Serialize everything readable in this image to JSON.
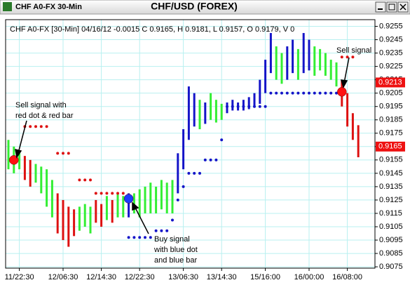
{
  "window_title": "CHF A0-FX 30-Min",
  "chart_data": {
    "type": "hlc",
    "title": "CHF/USD (FOREX)",
    "header": "CHF A0-FX [30-Min] 04/16/12 -0.0015 C 0.9165, H 0.9181, L 0.9157, O 0.9179, V 0",
    "categories": [
      null,
      null,
      "11/22:30",
      null,
      null,
      null,
      null,
      null,
      null,
      null,
      "12/06:30",
      null,
      null,
      null,
      null,
      null,
      null,
      "12/14:30",
      null,
      null,
      null,
      null,
      null,
      null,
      "12/22:30",
      null,
      null,
      null,
      null,
      null,
      null,
      null,
      "13/06:30",
      null,
      null,
      null,
      null,
      null,
      null,
      "13/14:30",
      null,
      null,
      null,
      null,
      null,
      null,
      null,
      "15/16:00",
      null,
      null,
      null,
      null,
      null,
      null,
      null,
      "16/00:00",
      null,
      null,
      null,
      null,
      null,
      null,
      "16/08:00",
      null,
      null
    ],
    "bars": {
      "high": [
        0.917,
        0.9165,
        0.916,
        0.9158,
        0.9155,
        0.9152,
        0.915,
        0.9148,
        0.914,
        0.913,
        0.9125,
        0.912,
        0.9118,
        0.912,
        0.9122,
        0.912,
        0.9125,
        0.9122,
        0.9128,
        0.9125,
        0.913,
        0.9128,
        0.913,
        0.913,
        0.9133,
        0.9135,
        0.9138,
        0.9135,
        0.914,
        0.9138,
        0.914,
        0.916,
        0.9178,
        0.921,
        0.9205,
        0.92,
        0.9198,
        0.9205,
        0.92,
        0.9197,
        0.9198,
        0.92,
        0.9198,
        0.92,
        0.9202,
        0.9205,
        0.9215,
        0.923,
        0.925,
        0.924,
        0.9235,
        0.924,
        0.9245,
        0.9238,
        0.925,
        0.9245,
        0.924,
        0.9238,
        0.9235,
        0.923,
        0.9228,
        0.9215,
        0.9205,
        0.919,
        0.9181
      ],
      "low": [
        0.9148,
        0.9145,
        0.9148,
        0.914,
        0.9135,
        0.9138,
        0.913,
        0.912,
        0.9112,
        0.91,
        0.9095,
        0.909,
        0.9098,
        0.9102,
        0.9105,
        0.91,
        0.9108,
        0.9105,
        0.911,
        0.9108,
        0.9112,
        0.9112,
        0.9112,
        0.9115,
        0.9112,
        0.9115,
        0.9115,
        0.9115,
        0.9118,
        0.9115,
        0.9115,
        0.913,
        0.9148,
        0.917,
        0.918,
        0.9178,
        0.9182,
        0.9185,
        0.9183,
        0.9185,
        0.919,
        0.9192,
        0.9192,
        0.9192,
        0.9193,
        0.9195,
        0.9197,
        0.9205,
        0.922,
        0.9215,
        0.9212,
        0.9215,
        0.922,
        0.9215,
        0.922,
        0.9222,
        0.9218,
        0.9222,
        0.9218,
        0.9215,
        0.921,
        0.9195,
        0.918,
        0.917,
        0.9157
      ],
      "colors": [
        "#33ee33",
        "#33ee33",
        "#33ee33",
        "#dd1111",
        "#dd1111",
        "#33ee33",
        "#33ee33",
        "#33ee33",
        "#33ee33",
        "#dd1111",
        "#dd1111",
        "#dd1111",
        "#dd1111",
        "#33ee33",
        "#33ee33",
        "#33ee33",
        "#dd1111",
        "#dd1111",
        "#33ee33",
        "#dd1111",
        "#33ee33",
        "#33ee33",
        "#1414c8",
        "#33ee33",
        "#33ee33",
        "#33ee33",
        "#33ee33",
        "#33ee33",
        "#33ee33",
        "#33ee33",
        "#33ee33",
        "#1414c8",
        "#1414c8",
        "#1414c8",
        "#1414c8",
        "#33ee33",
        "#1414c8",
        "#33ee33",
        "#33ee33",
        "#33ee33",
        "#1414c8",
        "#1414c8",
        "#1414c8",
        "#1414c8",
        "#1414c8",
        "#1414c8",
        "#1414c8",
        "#1414c8",
        "#1414c8",
        "#33ee33",
        "#33ee33",
        "#1414c8",
        "#1414c8",
        "#33ee33",
        "#1414c8",
        "#1414c8",
        "#33ee33",
        "#33ee33",
        "#33ee33",
        "#33ee33",
        "#33ee33",
        "#dd1111",
        "#dd1111",
        "#dd1111",
        "#dd1111"
      ]
    },
    "series": [
      {
        "color": "#dd1111",
        "values": [
          null,
          null,
          null,
          0.918,
          0.918,
          0.918,
          0.918,
          0.918,
          null,
          0.916,
          0.916,
          0.916,
          null,
          0.914,
          0.914,
          0.914,
          0.913,
          0.913,
          0.913,
          0.913,
          0.913,
          0.913,
          null,
          null,
          null,
          null,
          null,
          null,
          null,
          null,
          null,
          null,
          null,
          null,
          null,
          null,
          null,
          null,
          null,
          null,
          null,
          null,
          null,
          null,
          null,
          null,
          null,
          null,
          null,
          null,
          null,
          null,
          null,
          null,
          null,
          null,
          null,
          null,
          null,
          null,
          null,
          0.9232,
          0.9232,
          0.9232,
          null
        ]
      },
      {
        "color": "#1414c8",
        "values": [
          null,
          null,
          null,
          null,
          null,
          null,
          null,
          null,
          null,
          null,
          null,
          null,
          null,
          null,
          null,
          null,
          null,
          null,
          null,
          null,
          null,
          null,
          0.9097,
          0.9097,
          0.9097,
          0.9097,
          0.9097,
          0.9102,
          0.9102,
          0.9102,
          0.911,
          0.9125,
          0.9135,
          0.9145,
          0.9145,
          0.9145,
          0.9155,
          0.9155,
          0.9155,
          0.917,
          0.9195,
          0.9195,
          0.9195,
          0.9195,
          0.9195,
          0.9195,
          0.9195,
          0.9195,
          0.9205,
          0.9205,
          0.9205,
          0.9205,
          0.9205,
          0.9205,
          0.9205,
          0.9205,
          0.9205,
          0.9205,
          0.9205,
          0.9205,
          0.9205,
          null,
          null,
          null,
          null
        ]
      }
    ],
    "signals": [
      {
        "x": 1,
        "value": 0.9155,
        "color": "#ff1111"
      },
      {
        "x": 22,
        "value": 0.9126,
        "color": "#1a3cff"
      },
      {
        "x": 61,
        "value": 0.9206,
        "color": "#ff1111"
      }
    ],
    "price_flags": [
      0.9213,
      0.9165
    ],
    "flag_color": "#ee1111",
    "annotations": [
      "Sell signal with",
      "red dot & red bar",
      "Buy signal",
      "with blue dot",
      "and blue bar",
      "Sell signal"
    ],
    "ylim": [
      0.9074,
      0.926
    ],
    "yticks": [
      0.9255,
      0.9245,
      0.9235,
      0.9225,
      0.9215,
      0.9205,
      0.9195,
      0.9185,
      0.9175,
      0.9165,
      0.9155,
      0.9145,
      0.9135,
      0.9125,
      0.9115,
      0.9105,
      0.9095,
      0.9085,
      0.9075
    ],
    "grid": true
  }
}
